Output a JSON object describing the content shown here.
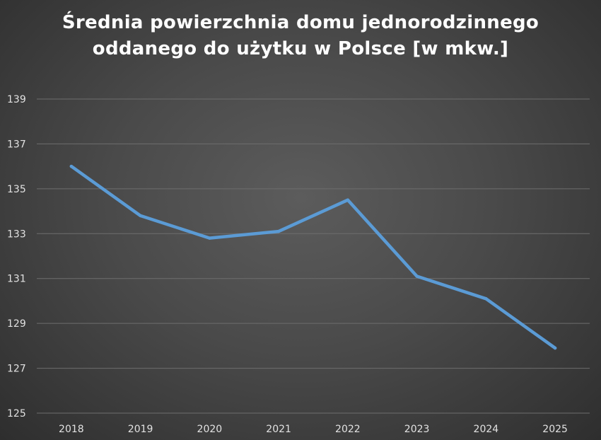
{
  "chart_data": {
    "type": "line",
    "title_lines": [
      "Średnia powierzchnia domu jednorodzinnego",
      "oddanego do użytku w Polsce [w mkw.]"
    ],
    "categories": [
      "2018",
      "2019",
      "2020",
      "2021",
      "2022",
      "2023",
      "2024",
      "2025"
    ],
    "values": [
      136.0,
      133.8,
      132.8,
      133.1,
      134.5,
      131.1,
      130.1,
      127.9
    ],
    "ylim": [
      125,
      139
    ],
    "yticks": [
      125,
      127,
      129,
      131,
      133,
      135,
      137,
      139
    ],
    "ytick_labels": [
      "125",
      "127",
      "129",
      "131",
      "133",
      "135",
      "137",
      "139"
    ],
    "grid": true,
    "legend": "none",
    "colors": {
      "line": "#5b9bd5",
      "grid": "#6e6e6e",
      "text": "#e2e2e2",
      "title": "#ffffff"
    }
  }
}
